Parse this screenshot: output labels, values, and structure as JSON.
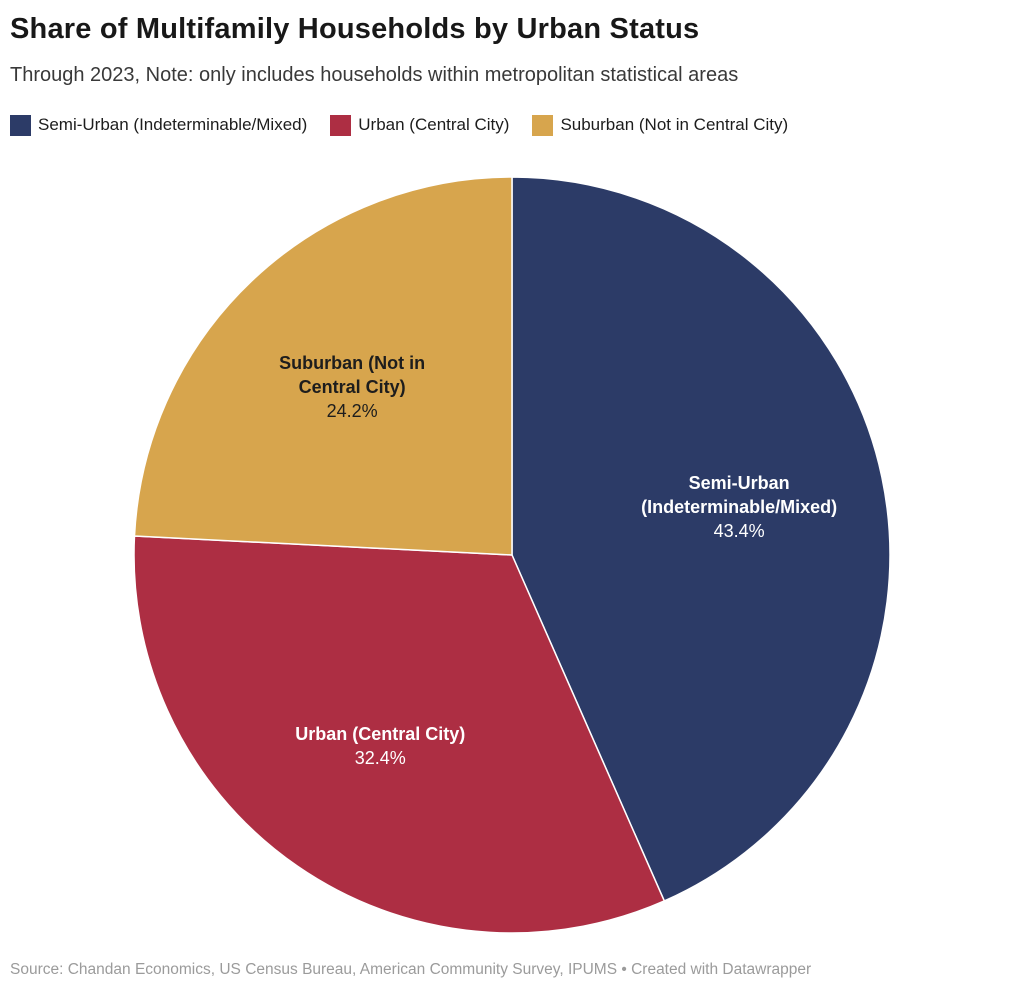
{
  "header": {
    "title": "Share of Multifamily Households by Urban Status",
    "subtitle": "Through 2023, Note: only includes households within metropolitan statistical areas"
  },
  "chart_data": {
    "type": "pie",
    "title": "Share of Multifamily Households by Urban Status",
    "subtitle": "Through 2023, Note: only includes households within metropolitan statistical areas",
    "start_angle_deg": 0,
    "direction": "clockwise",
    "legend_position": "top",
    "slices": [
      {
        "label": "Semi-Urban (Indeterminable/Mixed)",
        "label_lines": [
          "Semi-Urban",
          "(Indeterminable/Mixed)"
        ],
        "value": 43.4,
        "display": "43.4%",
        "color": "#2c3b67",
        "text_color": "#ffffff"
      },
      {
        "label": "Urban (Central City)",
        "label_lines": [
          "Urban (Central City)"
        ],
        "value": 32.4,
        "display": "32.4%",
        "color": "#ad2e43",
        "text_color": "#ffffff"
      },
      {
        "label": "Suburban (Not in Central City)",
        "label_lines": [
          "Suburban (Not in",
          "Central City)"
        ],
        "value": 24.2,
        "display": "24.2%",
        "color": "#d7a54d",
        "text_color": "#1d1d1d"
      }
    ]
  },
  "footer": {
    "text": "Source: Chandan Economics, US Census Bureau, American Community Survey, IPUMS • Created with Datawrapper"
  }
}
